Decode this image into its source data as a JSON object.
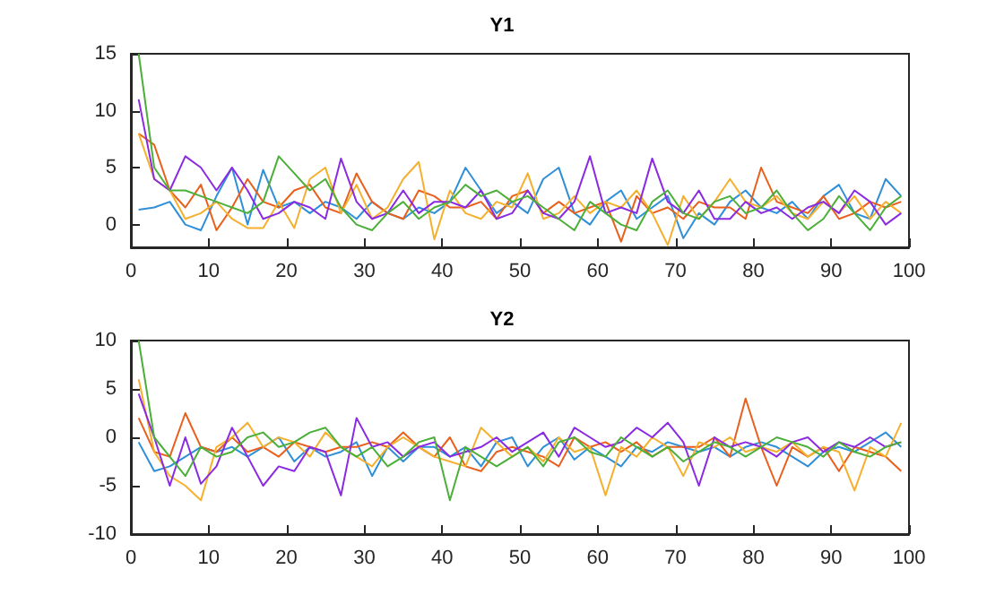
{
  "chart_data": [
    {
      "type": "line",
      "title": "Y1",
      "xlim": [
        0,
        100
      ],
      "xticks": [
        0,
        10,
        20,
        30,
        40,
        50,
        60,
        70,
        80,
        90,
        100
      ],
      "ylim": [
        -2,
        15
      ],
      "yticks": [
        0,
        5,
        10,
        15
      ],
      "grid": false,
      "marker": "none",
      "line_style": "solid",
      "x": [
        1,
        3,
        5,
        7,
        9,
        11,
        13,
        15,
        17,
        19,
        21,
        23,
        25,
        27,
        29,
        31,
        33,
        35,
        37,
        39,
        41,
        43,
        45,
        47,
        49,
        51,
        53,
        55,
        57,
        59,
        61,
        63,
        65,
        67,
        69,
        71,
        73,
        75,
        77,
        79,
        81,
        83,
        85,
        87,
        89,
        91,
        93,
        95,
        97,
        99
      ],
      "series": [
        {
          "color": "#2f8fd8",
          "values": [
            1.3,
            1.5,
            2,
            0,
            -0.5,
            2.5,
            5,
            0,
            4.8,
            1.5,
            2,
            1,
            2,
            1.5,
            0.5,
            2,
            1,
            0.5,
            1.5,
            1,
            2,
            5,
            3,
            1,
            2,
            1,
            4,
            5,
            1,
            0,
            2,
            3,
            0.5,
            1.5,
            2.5,
            -1.2,
            1,
            0,
            2,
            3,
            1.5,
            1,
            2,
            0.5,
            2.5,
            3.5,
            1,
            0.5,
            4,
            2.5
          ]
        },
        {
          "color": "#e8601c",
          "values": [
            8,
            7,
            3,
            1.5,
            3.5,
            -0.5,
            1.5,
            4,
            2,
            1.5,
            3,
            3.5,
            1.5,
            1,
            4.5,
            2,
            1,
            0.5,
            3,
            2.5,
            1.5,
            1.5,
            2,
            0.5,
            2.5,
            3,
            1,
            2,
            1,
            1.5,
            2,
            -1.5,
            2.5,
            1,
            1.5,
            0.5,
            2,
            1.5,
            1.5,
            0.5,
            5,
            2,
            1.5,
            1,
            2.5,
            0.5,
            1,
            2,
            1.5,
            2
          ]
        },
        {
          "color": "#f5b02e",
          "values": [
            8,
            4,
            3,
            0.5,
            1,
            2,
            0.5,
            -0.3,
            -0.3,
            2,
            -0.3,
            4,
            5,
            1,
            3.5,
            0.5,
            1.5,
            4,
            5.5,
            -1.3,
            3,
            1,
            0.5,
            2,
            1.5,
            4.5,
            0.5,
            1,
            2.5,
            1,
            2,
            1.5,
            3,
            1,
            -1.8,
            2.5,
            0.5,
            2,
            4,
            2,
            1.5,
            2.5,
            1,
            0.5,
            2,
            1,
            2.5,
            0.5,
            2,
            1
          ]
        },
        {
          "color": "#8a2be2",
          "values": [
            11,
            4,
            3,
            6,
            5,
            3,
            5,
            3,
            0.5,
            1,
            2,
            1.5,
            0.5,
            5.8,
            2,
            0.5,
            1,
            3,
            1,
            2,
            2,
            1.5,
            3,
            0.5,
            1,
            3,
            1,
            0.5,
            2,
            6,
            1,
            1.5,
            1,
            5.8,
            2,
            1,
            3,
            0.5,
            0.5,
            2,
            1,
            1.5,
            0.5,
            1.5,
            2,
            1,
            3,
            2,
            0,
            1
          ]
        },
        {
          "color": "#4caf3a",
          "values": [
            15,
            5,
            3,
            3,
            2.5,
            2,
            1.5,
            1,
            2,
            6,
            4.5,
            3,
            4,
            1.5,
            0,
            -0.5,
            1,
            2,
            0.5,
            1.5,
            2,
            3.5,
            2.5,
            3,
            2,
            2.5,
            1.5,
            0.5,
            -0.5,
            2,
            1,
            0,
            -0.5,
            2,
            3,
            1,
            0.5,
            2,
            2.5,
            1,
            1.5,
            3,
            1,
            -0.5,
            0.5,
            2.5,
            1,
            -0.5,
            1.5,
            2.5
          ]
        }
      ]
    },
    {
      "type": "line",
      "title": "Y2",
      "xlim": [
        0,
        100
      ],
      "xticks": [
        0,
        10,
        20,
        30,
        40,
        50,
        60,
        70,
        80,
        90,
        100
      ],
      "ylim": [
        -10,
        10
      ],
      "yticks": [
        -10,
        -5,
        0,
        5,
        10
      ],
      "grid": false,
      "marker": "none",
      "line_style": "solid",
      "x": [
        1,
        3,
        5,
        7,
        9,
        11,
        13,
        15,
        17,
        19,
        21,
        23,
        25,
        27,
        29,
        31,
        33,
        35,
        37,
        39,
        41,
        43,
        45,
        47,
        49,
        51,
        53,
        55,
        57,
        59,
        61,
        63,
        65,
        67,
        69,
        71,
        73,
        75,
        77,
        79,
        81,
        83,
        85,
        87,
        89,
        91,
        93,
        95,
        97,
        99
      ],
      "series": [
        {
          "color": "#2f8fd8",
          "values": [
            -0.5,
            -3.5,
            -3,
            -2,
            -1,
            -1.5,
            -1,
            -2,
            -1,
            0,
            -2.5,
            -1,
            -2,
            -1.5,
            -0.5,
            -4,
            -1,
            -2.5,
            -1,
            -1,
            -2,
            -1,
            -3,
            -0.5,
            0,
            -3,
            -1,
            0,
            -2.3,
            -1,
            -2,
            -3,
            -1,
            -1.5,
            -0.5,
            -1,
            -1.5,
            -1,
            -2,
            -1,
            -0.5,
            -1,
            -2,
            -3,
            -1.5,
            -1,
            -1.5,
            -0.5,
            0.5,
            -1
          ]
        },
        {
          "color": "#e8601c",
          "values": [
            2,
            -1.5,
            -2,
            2.5,
            -1,
            -1.5,
            0,
            -1.5,
            -1,
            -2,
            -0.5,
            -1,
            -1.5,
            -1,
            -1,
            -0.5,
            -1,
            0.5,
            -1,
            -2,
            0,
            -3,
            -3.5,
            -1.5,
            -1,
            -1.5,
            -2,
            -3,
            0,
            -1,
            -0.5,
            -1.5,
            -0.5,
            -2,
            -1,
            -1,
            -1,
            0,
            -2,
            4,
            -1,
            -5,
            -1,
            -2,
            -1,
            -3.5,
            -1,
            -1.5,
            -2,
            -3.5
          ]
        },
        {
          "color": "#f5b02e",
          "values": [
            6,
            -1.5,
            -4,
            -5,
            -6.5,
            -1,
            0,
            1.5,
            -1,
            0,
            -0.5,
            -2,
            0.5,
            -1,
            -2,
            -3,
            -1,
            0,
            -1,
            -2,
            -2.5,
            -3,
            1,
            -0.5,
            -2,
            -1,
            -2.5,
            0,
            -1.5,
            -1,
            -6,
            -1,
            -2,
            0,
            -1,
            -4,
            -0.5,
            -1,
            0,
            -1.5,
            -1,
            -1.5,
            -0.5,
            -2,
            -1,
            -1.5,
            -5.5,
            -1,
            -2,
            1.5
          ]
        },
        {
          "color": "#8a2be2",
          "values": [
            4.5,
            0,
            -5,
            0,
            -4.8,
            -3,
            1,
            -2,
            -5,
            -3,
            -3.5,
            -1,
            -1.5,
            -6,
            2,
            -1,
            -0.5,
            -2,
            -1,
            -0.5,
            -2,
            -1.5,
            -1,
            0,
            -1.5,
            -0.5,
            0.5,
            -2,
            1,
            0,
            -1,
            -0.5,
            1,
            0,
            1.5,
            -0.5,
            -5,
            0,
            -1,
            -0.5,
            -1,
            -2,
            -0.5,
            0,
            -1.5,
            -0.5,
            -1,
            0,
            -1,
            -0.5
          ]
        },
        {
          "color": "#4caf3a",
          "values": [
            10,
            0,
            -2,
            -4,
            -1,
            -2,
            -1.5,
            0,
            0.5,
            -1,
            -0.5,
            0.5,
            1,
            -1,
            -2,
            -1,
            -3,
            -2,
            -0.5,
            0,
            -6.5,
            -1,
            -2,
            -3,
            -2,
            -1,
            -3,
            -0.5,
            0,
            -1.5,
            -2,
            0,
            -1,
            -2,
            -1,
            -2.5,
            -1.5,
            -0.5,
            -1,
            -2,
            -1,
            0,
            -0.5,
            -1,
            -2,
            -0.5,
            -1.5,
            -2,
            -1,
            -0.5
          ]
        }
      ]
    }
  ]
}
